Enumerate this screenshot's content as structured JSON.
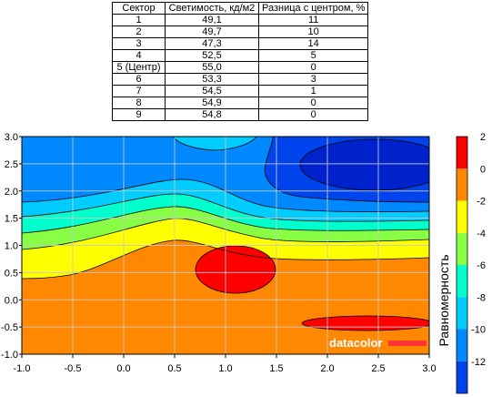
{
  "table": {
    "headers": [
      "Сектор",
      "Светимость, кд/м2",
      "Разница с центром, %"
    ],
    "rows": [
      [
        "1",
        "49,1",
        "11"
      ],
      [
        "2",
        "49,7",
        "10"
      ],
      [
        "3",
        "47,3",
        "14"
      ],
      [
        "4",
        "52,5",
        "5"
      ],
      [
        "5 (Центр)",
        "55,0",
        "0"
      ],
      [
        "6",
        "53,3",
        "3"
      ],
      [
        "7",
        "54,5",
        "1"
      ],
      [
        "8",
        "54,9",
        "0"
      ],
      [
        "9",
        "54,8",
        "0"
      ]
    ]
  },
  "chart_data": {
    "type": "heatmap",
    "title": "",
    "xlabel": "",
    "ylabel": "",
    "colorbar_label": "Равномерность",
    "xlim": [
      -1.0,
      3.0
    ],
    "ylim": [
      -1.0,
      3.0
    ],
    "x_ticks": [
      "-1.0",
      "-0.5",
      "0.0",
      "0.5",
      "1.0",
      "1.5",
      "2.0",
      "2.5",
      "3.0"
    ],
    "y_ticks": [
      "3.0",
      "2.5",
      "2.0",
      "1.5",
      "1.0",
      "0.5",
      "0.0",
      "-0.5",
      "-1.0"
    ],
    "grid": true,
    "colorbar": {
      "ticks": [
        "2",
        "0",
        "-2",
        "-4",
        "-6",
        "-8",
        "-10",
        "-12"
      ],
      "levels": [
        {
          "from": 0,
          "to": 2,
          "color": "#ff0000"
        },
        {
          "from": -2,
          "to": 0,
          "color": "#ff8800"
        },
        {
          "from": -4,
          "to": -2,
          "color": "#ffff00"
        },
        {
          "from": -6,
          "to": -4,
          "color": "#88ff44"
        },
        {
          "from": -8,
          "to": -6,
          "color": "#00ffcc"
        },
        {
          "from": -10,
          "to": -8,
          "color": "#00ccff"
        },
        {
          "from": -12,
          "to": -10,
          "color": "#0088ff"
        },
        {
          "from": -14,
          "to": -12,
          "color": "#0044ee"
        }
      ]
    },
    "watermark": "datacolor"
  }
}
